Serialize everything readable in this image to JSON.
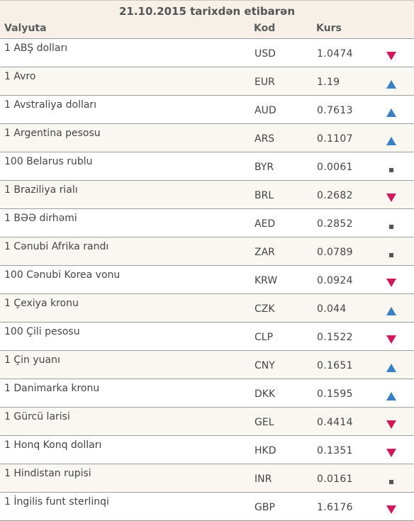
{
  "table": {
    "title": "21.10.2015 tarixdən etibarən",
    "headers": {
      "name": "Valyuta",
      "code": "Kod",
      "rate": "Kurs"
    },
    "trend_colors": {
      "up": "#3a7fc1",
      "down": "#cc1a5c",
      "same": "#555555"
    },
    "rows": [
      {
        "name": "1 ABŞ dolları",
        "code": "USD",
        "rate": "1.0474",
        "trend": "down"
      },
      {
        "name": "1 Avro",
        "code": "EUR",
        "rate": "1.19",
        "trend": "up"
      },
      {
        "name": "1 Avstraliya dolları",
        "code": "AUD",
        "rate": "0.7613",
        "trend": "up"
      },
      {
        "name": "1 Argentina pesosu",
        "code": "ARS",
        "rate": "0.1107",
        "trend": "up"
      },
      {
        "name": "100 Belarus rublu",
        "code": "BYR",
        "rate": "0.0061",
        "trend": "same"
      },
      {
        "name": "1 Braziliya rialı",
        "code": "BRL",
        "rate": "0.2682",
        "trend": "down"
      },
      {
        "name": "1 BƏƏ dirhəmi",
        "code": "AED",
        "rate": "0.2852",
        "trend": "same"
      },
      {
        "name": "1 Cənubi Afrika randı",
        "code": "ZAR",
        "rate": "0.0789",
        "trend": "same"
      },
      {
        "name": "100 Cənubi Korea vonu",
        "code": "KRW",
        "rate": "0.0924",
        "trend": "down"
      },
      {
        "name": "1 Çexiya kronu",
        "code": "CZK",
        "rate": "0.044",
        "trend": "up"
      },
      {
        "name": "100 Çili pesosu",
        "code": "CLP",
        "rate": "0.1522",
        "trend": "down"
      },
      {
        "name": "1 Çin yuanı",
        "code": "CNY",
        "rate": "0.1651",
        "trend": "up"
      },
      {
        "name": "1 Danimarka kronu",
        "code": "DKK",
        "rate": "0.1595",
        "trend": "up"
      },
      {
        "name": "1 Gürcü larisi",
        "code": "GEL",
        "rate": "0.4414",
        "trend": "down"
      },
      {
        "name": "1 Honq Konq dolları",
        "code": "HKD",
        "rate": "0.1351",
        "trend": "down"
      },
      {
        "name": "1 Hindistan rupisi",
        "code": "INR",
        "rate": "0.0161",
        "trend": "same"
      },
      {
        "name": "1 İngilis funt sterlinqi",
        "code": "GBP",
        "rate": "1.6176",
        "trend": "down"
      }
    ]
  }
}
